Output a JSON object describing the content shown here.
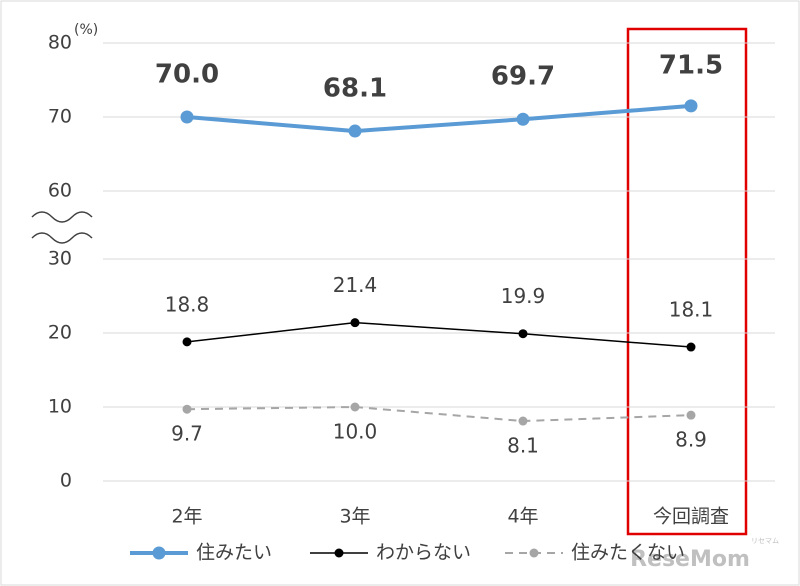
{
  "chart_data": {
    "type": "line",
    "y_unit": "(%)",
    "categories": [
      "2年",
      "3年",
      "4年",
      "今回調査"
    ],
    "series": [
      {
        "name": "住みたい",
        "color": "#5b9bd5",
        "values": [
          70.0,
          68.1,
          69.7,
          71.5
        ],
        "value_labels": [
          "70.0",
          "68.1",
          "69.7",
          "71.5"
        ]
      },
      {
        "name": "わからない",
        "color": "#000000",
        "values": [
          18.8,
          21.4,
          19.9,
          18.1
        ]
      },
      {
        "name": "住みたくない",
        "color": "#a6a6a6",
        "dash": true,
        "values": [
          9.7,
          10.0,
          8.1,
          8.9
        ],
        "value_labels": [
          "9.7",
          "10.0",
          "8.1",
          "8.9"
        ]
      }
    ],
    "ylim": [
      0,
      80
    ],
    "yticks": [
      0,
      10,
      20,
      30,
      60,
      70,
      80
    ],
    "axis_break": [
      30,
      60
    ],
    "grid": true,
    "legend": "bottom",
    "watermark": "ReseMom",
    "watermark_small": "リセマム"
  }
}
